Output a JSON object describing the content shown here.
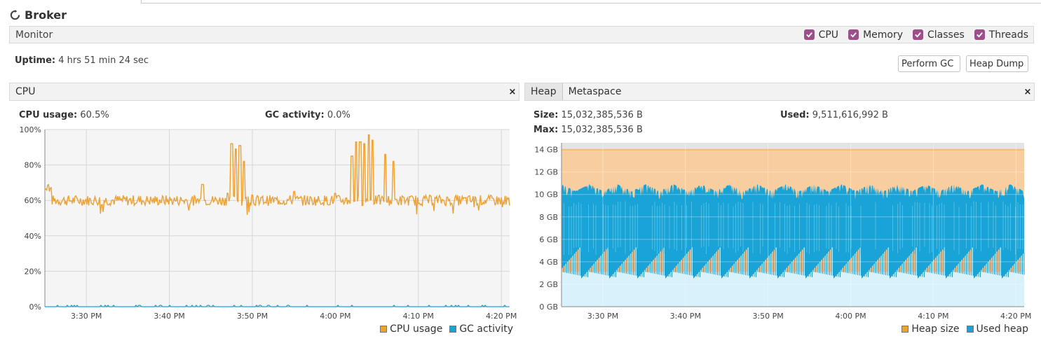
{
  "window": {
    "title": "Broker"
  },
  "monitor": {
    "label": "Monitor",
    "checkboxes": [
      {
        "label": "CPU",
        "checked": true
      },
      {
        "label": "Memory",
        "checked": true
      },
      {
        "label": "Classes",
        "checked": true
      },
      {
        "label": "Threads",
        "checked": true
      }
    ],
    "uptime_label": "Uptime:",
    "uptime_value": "4 hrs 51 min 24 sec",
    "buttons": {
      "perform_gc": "Perform GC",
      "heap_dump": "Heap Dump"
    }
  },
  "cpu_panel": {
    "tab": "CPU",
    "close": "×",
    "usage_label": "CPU usage:",
    "usage_value": "60.5%",
    "gc_label": "GC activity:",
    "gc_value": "0.0%",
    "legend": [
      {
        "label": "CPU usage",
        "color": "#f0a030"
      },
      {
        "label": "GC activity",
        "color": "#1aa3d6"
      }
    ]
  },
  "heap_panel": {
    "tabs": [
      "Heap",
      "Metaspace"
    ],
    "close": "×",
    "size_label": "Size:",
    "size_value": "15,032,385,536 B",
    "used_label": "Used:",
    "used_value": "9,511,616,992 B",
    "max_label": "Max:",
    "max_value": "15,032,385,536 B",
    "legend": [
      {
        "label": "Heap size",
        "color": "#f0a030"
      },
      {
        "label": "Used heap",
        "color": "#1aa3d6"
      }
    ]
  },
  "chart_data": [
    {
      "type": "line",
      "x_ticks": [
        "3:30 PM",
        "3:40 PM",
        "3:50 PM",
        "4:00 PM",
        "4:10 PM",
        "4:20 PM"
      ],
      "x_range": [
        "3:25 PM",
        "4:21 PM"
      ],
      "y_ticks": [
        "0%",
        "20%",
        "40%",
        "60%",
        "80%",
        "100%"
      ],
      "ylim": [
        0,
        100
      ],
      "grid": true,
      "legend_position": "bottom-right",
      "series": [
        {
          "name": "CPU usage",
          "color": "#f0a030",
          "baseline": 60,
          "spikes": [
            {
              "t": "3:44 PM",
              "v": 69
            },
            {
              "t": "3:47 PM",
              "v": 64
            },
            {
              "t": "3:47:30 PM",
              "v": 92
            },
            {
              "t": "3:48 PM",
              "v": 89
            },
            {
              "t": "3:48:30 PM",
              "v": 91
            },
            {
              "t": "3:49 PM",
              "v": 82
            },
            {
              "t": "3:50 PM",
              "v": 63
            },
            {
              "t": "3:55 PM",
              "v": 65
            },
            {
              "t": "4:00 PM",
              "v": 64
            },
            {
              "t": "4:02 PM",
              "v": 85
            },
            {
              "t": "4:02:30 PM",
              "v": 93
            },
            {
              "t": "4:03 PM",
              "v": 93
            },
            {
              "t": "4:03:30 PM",
              "v": 92
            },
            {
              "t": "4:04 PM",
              "v": 97
            },
            {
              "t": "4:04:30 PM",
              "v": 94
            },
            {
              "t": "4:06 PM",
              "v": 86
            },
            {
              "t": "4:07 PM",
              "v": 82
            }
          ]
        },
        {
          "name": "GC activity",
          "color": "#1aa3d6",
          "baseline": 0
        }
      ]
    },
    {
      "type": "area",
      "x_ticks": [
        "3:30 PM",
        "3:40 PM",
        "3:50 PM",
        "4:00 PM",
        "4:10 PM",
        "4:20 PM"
      ],
      "x_range": [
        "3:25 PM",
        "4:21 PM"
      ],
      "y_ticks": [
        "0 GB",
        "2 GB",
        "4 GB",
        "6 GB",
        "8 GB",
        "10 GB",
        "12 GB",
        "14 GB"
      ],
      "ylim": [
        0,
        14.6
      ],
      "grid": true,
      "legend_position": "bottom-right",
      "series": [
        {
          "name": "Heap size",
          "color": "#f0a030",
          "fill": "#f8cea0",
          "value_gb": 14.0
        },
        {
          "name": "Used heap",
          "color": "#1aa3d6",
          "fill": "#1aa3d6",
          "upper_range_gb": [
            9.7,
            10.9
          ],
          "lower_range_gb": [
            2.5,
            5.4
          ],
          "floor_range_gb": [
            2.6,
            3.1
          ]
        }
      ]
    }
  ]
}
